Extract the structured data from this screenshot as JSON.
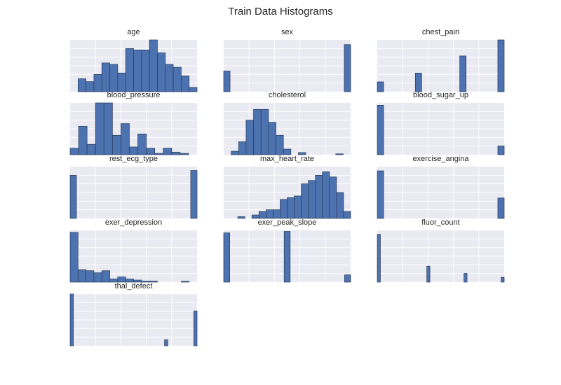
{
  "figure": {
    "title": "Train Data Histograms",
    "colors": {
      "bar_fill": "#4c72b0",
      "bar_edge": "#2a3b55",
      "axes_bg": "#eaeaf2",
      "grid": "#ffffff"
    }
  },
  "chart_data": [
    {
      "type": "bar",
      "title": "age",
      "grid": true,
      "ylim": [
        0,
        18
      ],
      "values": [
        0,
        4.5,
        3.5,
        6,
        10,
        9.5,
        6.5,
        15,
        14.5,
        14.5,
        18.5,
        13.5,
        9.5,
        8.5,
        5.5,
        1.5
      ]
    },
    {
      "type": "bar",
      "title": "sex",
      "grid": true,
      "ylim": [
        0,
        110
      ],
      "values": [
        44,
        0,
        0,
        0,
        0,
        0,
        0,
        0,
        0,
        0,
        0,
        0,
        0,
        0,
        0,
        0,
        0,
        0,
        0,
        100
      ]
    },
    {
      "type": "bar",
      "title": "chest_pain",
      "grid": true,
      "ylim": [
        0,
        100
      ],
      "values": [
        19,
        0,
        0,
        0,
        0,
        0,
        36,
        0,
        0,
        0,
        0,
        0,
        0,
        69,
        0,
        0,
        0,
        0,
        0,
        100
      ]
    },
    {
      "type": "bar",
      "title": "blood_pressure",
      "grid": true,
      "ylim": [
        0,
        20
      ],
      "values": [
        2.5,
        11,
        4,
        20.5,
        20.5,
        7.5,
        12,
        3,
        8,
        2.5,
        0.5,
        2.5,
        1,
        0.5,
        0
      ]
    },
    {
      "type": "bar",
      "title": "cholesterol",
      "grid": true,
      "ylim": [
        0,
        12
      ],
      "values": [
        0,
        0.8,
        3,
        8,
        10.5,
        10.5,
        7.5,
        4.5,
        1.3,
        0,
        0.5,
        0,
        0,
        0,
        0,
        0.2,
        0
      ]
    },
    {
      "type": "bar",
      "title": "blood_sugar_up",
      "grid": true,
      "ylim": [
        0,
        220
      ],
      "values": [
        210,
        0,
        0,
        0,
        0,
        0,
        0,
        0,
        0,
        0,
        0,
        0,
        0,
        0,
        0,
        0,
        0,
        0,
        0,
        37
      ]
    },
    {
      "type": "bar",
      "title": "rest_ecg_type",
      "grid": true,
      "ylim": [
        0,
        120
      ],
      "values": [
        100,
        0,
        0,
        0,
        0,
        0,
        0,
        0,
        0,
        0,
        0,
        0,
        0,
        0,
        0,
        0,
        0,
        0,
        0,
        111
      ]
    },
    {
      "type": "bar",
      "title": "max_heart_rate",
      "grid": true,
      "ylim": [
        0,
        15
      ],
      "values": [
        0,
        0,
        0.5,
        0,
        1,
        2,
        2.5,
        2.5,
        5.5,
        6,
        6.5,
        10,
        11,
        12.5,
        13.5,
        12,
        7.5,
        2
      ]
    },
    {
      "type": "bar",
      "title": "exercise_angina",
      "grid": true,
      "ylim": [
        0,
        160
      ],
      "values": [
        147,
        0,
        0,
        0,
        0,
        0,
        0,
        0,
        0,
        0,
        0,
        0,
        0,
        0,
        0,
        0,
        0,
        0,
        0,
        63
      ]
    },
    {
      "type": "bar",
      "title": "exer_depression",
      "grid": true,
      "ylim": [
        0,
        25
      ],
      "values": [
        24,
        6,
        5.5,
        4.5,
        5.5,
        1.5,
        2.5,
        1.5,
        1,
        0.5,
        0.5,
        0,
        0,
        0,
        0.3,
        0
      ]
    },
    {
      "type": "bar",
      "title": "exer_peak_slope",
      "grid": true,
      "ylim": [
        0,
        100
      ],
      "values": [
        95,
        0,
        0,
        0,
        0,
        0,
        0,
        0,
        0,
        0,
        98,
        0,
        0,
        0,
        0,
        0,
        0,
        0,
        0,
        0,
        14
      ]
    },
    {
      "type": "bar",
      "title": "fluor_count",
      "grid": true,
      "ylim": [
        0,
        130
      ],
      "values": [
        120,
        0,
        0,
        0,
        0,
        0,
        0,
        0,
        0,
        0,
        0,
        0,
        0,
        0,
        0,
        0,
        40,
        0,
        0,
        0,
        0,
        0,
        0,
        0,
        0,
        0,
        0,
        0,
        22,
        0,
        0,
        0,
        0,
        0,
        0,
        0,
        0,
        0,
        0,
        0,
        12
      ]
    },
    {
      "type": "bar",
      "title": "thal_defect",
      "grid": true,
      "ylim": [
        0,
        110
      ],
      "values": [
        110,
        0,
        0,
        0,
        0,
        0,
        0,
        0,
        0,
        0,
        0,
        0,
        0,
        0,
        0,
        0,
        0,
        0,
        0,
        0,
        0,
        0,
        0,
        0,
        0,
        0,
        0,
        0,
        0,
        13,
        0,
        0,
        0,
        0,
        0,
        0,
        0,
        0,
        74
      ]
    }
  ]
}
